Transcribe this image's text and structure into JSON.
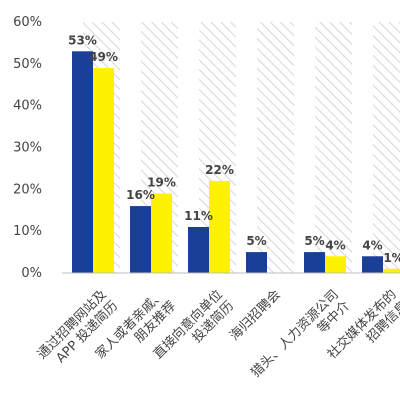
{
  "chart_data": {
    "type": "bar",
    "categories": [
      [
        "通过招聘网站及",
        "APP 投递简历"
      ],
      [
        "家人或者亲戚、",
        "朋友推荐"
      ],
      [
        "直接向意向单位",
        "投递简历"
      ],
      [
        "海归招聘会"
      ],
      [
        "猎头、人力资源公司",
        "等中介"
      ],
      [
        "社交媒体发布的",
        "招聘信息"
      ]
    ],
    "series": [
      {
        "values": [
          53,
          16,
          11,
          5,
          5,
          4
        ],
        "labels": [
          "53%",
          "16%",
          "11%",
          "5%",
          "5%",
          "4%"
        ]
      },
      {
        "values": [
          49,
          19,
          22,
          null,
          4,
          1
        ],
        "labels": [
          "49%",
          "19%",
          "22%",
          "",
          "4%",
          "1%"
        ]
      }
    ],
    "ylim": [
      0,
      60
    ],
    "yticks": [
      0,
      10,
      20,
      30,
      40,
      50,
      60
    ],
    "ytick_labels": [
      "0%",
      "10%",
      "20%",
      "30%",
      "40%",
      "50%",
      "60%"
    ],
    "grid": false,
    "legend": false,
    "colors": {
      "series": [
        "#1a3f98",
        "#fff200"
      ],
      "hatch": "#d8d8d8",
      "axis": "#bfbfbf",
      "text": "#444444"
    }
  }
}
